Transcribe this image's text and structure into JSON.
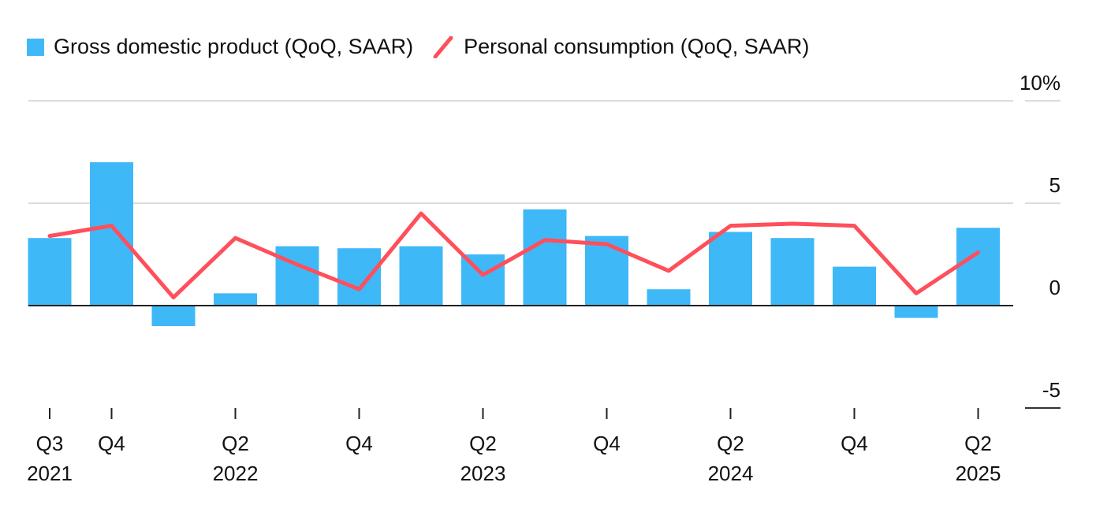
{
  "chart_data": {
    "type": "bar",
    "categories": [
      "Q3 2021",
      "Q4 2021",
      "Q1 2022",
      "Q2 2022",
      "Q3 2022",
      "Q4 2022",
      "Q1 2023",
      "Q2 2023",
      "Q3 2023",
      "Q4 2023",
      "Q1 2024",
      "Q2 2024",
      "Q3 2024",
      "Q4 2024",
      "Q1 2025",
      "Q2 2025"
    ],
    "series": [
      {
        "name": "Gross domestic product (QoQ, SAAR)",
        "type": "bar",
        "color": "#3fb8f8",
        "values": [
          3.3,
          7.0,
          -1.0,
          0.6,
          2.9,
          2.8,
          2.9,
          2.5,
          4.7,
          3.4,
          0.8,
          3.6,
          3.3,
          1.9,
          -0.6,
          3.8
        ]
      },
      {
        "name": "Personal consumption (QoQ, SAAR)",
        "type": "line",
        "color": "#ff4f5b",
        "values": [
          3.4,
          3.9,
          0.4,
          3.3,
          2.0,
          0.8,
          4.5,
          1.5,
          3.2,
          3.0,
          1.7,
          3.9,
          4.0,
          3.9,
          0.6,
          2.6
        ]
      }
    ],
    "x_ticks": [
      {
        "index": 0,
        "q": "Q3",
        "year": "2021"
      },
      {
        "index": 1,
        "q": "Q4",
        "year": ""
      },
      {
        "index": 3,
        "q": "Q2",
        "year": "2022"
      },
      {
        "index": 5,
        "q": "Q4",
        "year": ""
      },
      {
        "index": 7,
        "q": "Q2",
        "year": "2023"
      },
      {
        "index": 9,
        "q": "Q4",
        "year": ""
      },
      {
        "index": 11,
        "q": "Q2",
        "year": "2024"
      },
      {
        "index": 13,
        "q": "Q4",
        "year": ""
      },
      {
        "index": 15,
        "q": "Q2",
        "year": "2025"
      }
    ],
    "y_ticks": [
      {
        "value": 10,
        "label": "10%"
      },
      {
        "value": 5,
        "label": "5"
      },
      {
        "value": 0,
        "label": "0"
      },
      {
        "value": -5,
        "label": "-5"
      }
    ],
    "ylim": [
      -5,
      10
    ],
    "grid": true,
    "legend_position": "top-left",
    "y_axis_side": "right"
  }
}
